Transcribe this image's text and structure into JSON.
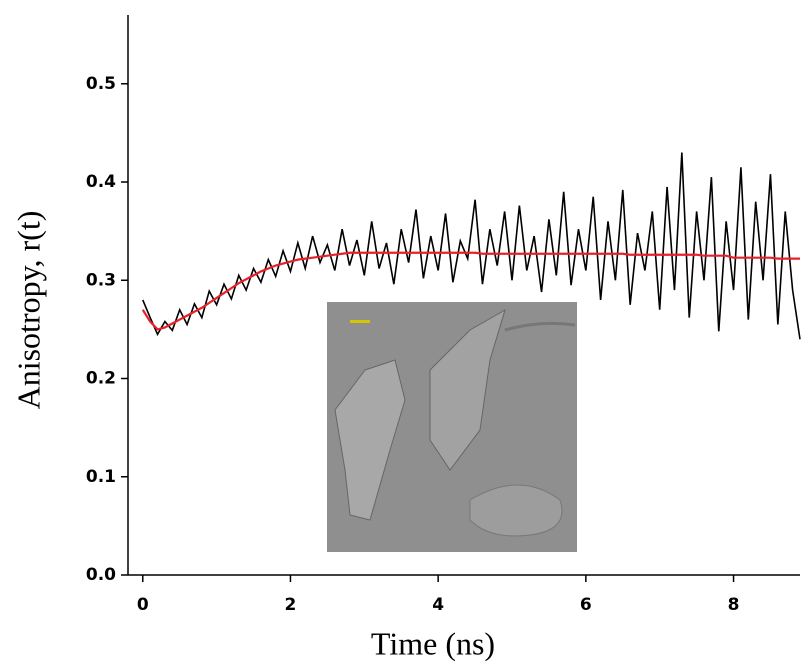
{
  "chart_data": {
    "type": "line",
    "xlabel": "Time (ns)",
    "ylabel": "Anisotropy, r(t)",
    "x": [
      0,
      0.1,
      0.2,
      0.3,
      0.4,
      0.5,
      0.6,
      0.7,
      0.8,
      0.9,
      1,
      1.1,
      1.2,
      1.3,
      1.4,
      1.5,
      1.6,
      1.7,
      1.8,
      1.9,
      2,
      2.1,
      2.2,
      2.3,
      2.4,
      2.5,
      2.6,
      2.7,
      2.8,
      2.9,
      3,
      3.1,
      3.2,
      3.3,
      3.4,
      3.5,
      3.6,
      3.7,
      3.8,
      3.9,
      4,
      4.1,
      4.2,
      4.3,
      4.4,
      4.5,
      4.6,
      4.7,
      4.8,
      4.9,
      5,
      5.1,
      5.2,
      5.3,
      5.4,
      5.5,
      5.6,
      5.7,
      5.8,
      5.9,
      6,
      6.1,
      6.2,
      6.3,
      6.4,
      6.5,
      6.6,
      6.7,
      6.8,
      6.9,
      7,
      7.1,
      7.2,
      7.3,
      7.4,
      7.5,
      7.6,
      7.7,
      7.8,
      7.9,
      8,
      8.1,
      8.2,
      8.3,
      8.4,
      8.5,
      8.6,
      8.7,
      8.8,
      8.9
    ],
    "series": [
      {
        "color": "#000000",
        "values": [
          0.28,
          0.262,
          0.245,
          0.258,
          0.249,
          0.27,
          0.255,
          0.276,
          0.262,
          0.289,
          0.275,
          0.296,
          0.281,
          0.305,
          0.29,
          0.312,
          0.298,
          0.321,
          0.304,
          0.33,
          0.309,
          0.338,
          0.312,
          0.345,
          0.318,
          0.336,
          0.31,
          0.352,
          0.315,
          0.341,
          0.305,
          0.36,
          0.312,
          0.338,
          0.296,
          0.352,
          0.318,
          0.372,
          0.302,
          0.345,
          0.31,
          0.368,
          0.298,
          0.34,
          0.322,
          0.382,
          0.296,
          0.352,
          0.315,
          0.37,
          0.3,
          0.376,
          0.31,
          0.345,
          0.288,
          0.362,
          0.305,
          0.39,
          0.295,
          0.352,
          0.31,
          0.385,
          0.28,
          0.36,
          0.3,
          0.392,
          0.275,
          0.348,
          0.31,
          0.37,
          0.27,
          0.395,
          0.29,
          0.43,
          0.262,
          0.37,
          0.3,
          0.405,
          0.248,
          0.36,
          0.29,
          0.415,
          0.26,
          0.38,
          0.3,
          0.408,
          0.255,
          0.37,
          0.29,
          0.24
        ]
      },
      {
        "color": "#e8202a",
        "values": [
          0.27,
          0.258,
          0.25,
          0.252,
          0.256,
          0.26,
          0.264,
          0.268,
          0.272,
          0.277,
          0.282,
          0.287,
          0.292,
          0.297,
          0.301,
          0.305,
          0.309,
          0.312,
          0.315,
          0.317,
          0.319,
          0.321,
          0.322,
          0.323,
          0.324,
          0.325,
          0.326,
          0.327,
          0.328,
          0.328,
          0.328,
          0.328,
          0.328,
          0.328,
          0.328,
          0.328,
          0.328,
          0.328,
          0.328,
          0.328,
          0.328,
          0.328,
          0.328,
          0.328,
          0.328,
          0.328,
          0.327,
          0.327,
          0.327,
          0.327,
          0.327,
          0.327,
          0.327,
          0.327,
          0.327,
          0.327,
          0.327,
          0.327,
          0.327,
          0.327,
          0.327,
          0.327,
          0.327,
          0.327,
          0.327,
          0.327,
          0.326,
          0.326,
          0.326,
          0.326,
          0.326,
          0.326,
          0.326,
          0.326,
          0.326,
          0.326,
          0.325,
          0.325,
          0.325,
          0.325,
          0.323,
          0.323,
          0.323,
          0.323,
          0.323,
          0.323,
          0.322,
          0.322,
          0.322,
          0.322
        ]
      }
    ],
    "xlim": [
      -0.2,
      8.9
    ],
    "xticks": [
      0,
      2,
      4,
      6,
      8
    ],
    "ylim": [
      0,
      0.57
    ],
    "yticks": [
      {
        "value": 0,
        "label": "0.0"
      },
      0.1,
      0.2,
      0.3,
      0.4,
      0.5
    ]
  }
}
